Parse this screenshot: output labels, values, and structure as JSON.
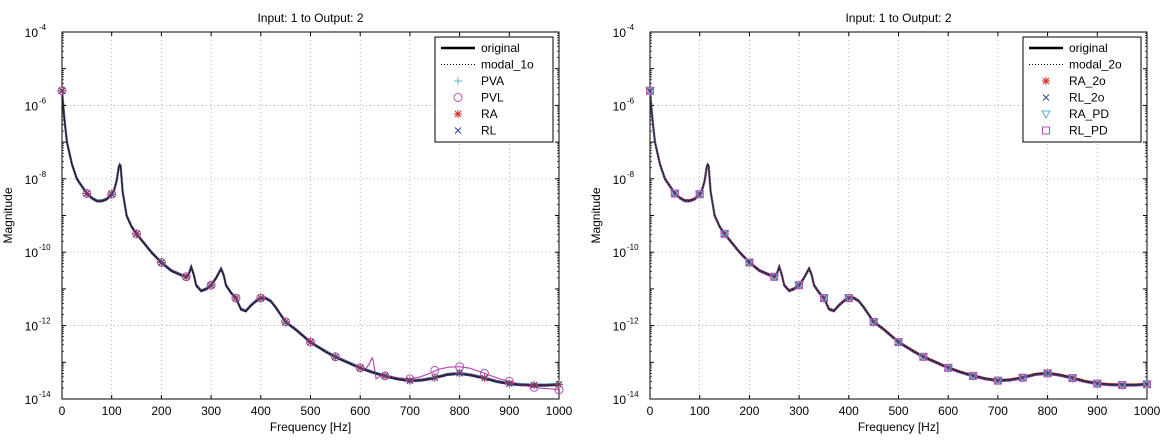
{
  "chart_data": [
    {
      "type": "line",
      "title": "Input: 1 to Output: 2",
      "xlabel": "Frequency [Hz]",
      "ylabel": "Magnitude",
      "xlim": [
        0,
        1000
      ],
      "ylim_log10": [
        -14,
        -4
      ],
      "yscale": "log",
      "grid": true,
      "legend_position": "top-right",
      "xticks": [
        "0",
        "100",
        "200",
        "300",
        "400",
        "500",
        "600",
        "700",
        "800",
        "900",
        "1000"
      ],
      "yticks": [
        {
          "base": "10",
          "exp": "-4"
        },
        {
          "base": "10",
          "exp": "-6"
        },
        {
          "base": "10",
          "exp": "-8"
        },
        {
          "base": "10",
          "exp": "-10"
        },
        {
          "base": "10",
          "exp": "-12"
        },
        {
          "base": "10",
          "exp": "-14"
        }
      ],
      "series": [
        {
          "name": "original",
          "style": "solid",
          "color": "#000000"
        },
        {
          "name": "modal_1o",
          "style": "dotted",
          "color": "#000000"
        },
        {
          "name": "PVA",
          "marker": "plus",
          "color": "#59b4d9"
        },
        {
          "name": "PVL",
          "marker": "circle",
          "color": "#b84fb3"
        },
        {
          "name": "RA",
          "marker": "asterisk",
          "color": "#d42b2b"
        },
        {
          "name": "RL",
          "marker": "x",
          "color": "#2c4b8f"
        }
      ],
      "magnitude_curve": {
        "x": [
          0,
          5,
          10,
          20,
          30,
          40,
          50,
          60,
          70,
          80,
          90,
          100,
          105,
          110,
          115,
          118,
          122,
          130,
          140,
          150,
          165,
          180,
          200,
          220,
          240,
          250,
          255,
          260,
          265,
          270,
          280,
          290,
          300,
          310,
          320,
          325,
          330,
          340,
          350,
          360,
          370,
          380,
          390,
          400,
          410,
          420,
          430,
          440,
          450,
          470,
          500,
          530,
          550,
          575,
          600,
          625,
          650,
          675,
          700,
          725,
          750,
          775,
          800,
          825,
          850,
          875,
          900,
          925,
          950,
          975,
          1000
        ],
        "log10y": [
          -5.6,
          -6.4,
          -7.0,
          -7.6,
          -8.0,
          -8.2,
          -8.4,
          -8.52,
          -8.6,
          -8.6,
          -8.55,
          -8.42,
          -8.3,
          -8.05,
          -7.6,
          -7.65,
          -8.35,
          -9.0,
          -9.3,
          -9.5,
          -9.75,
          -10.0,
          -10.28,
          -10.5,
          -10.62,
          -10.67,
          -10.6,
          -10.4,
          -10.6,
          -10.9,
          -11.05,
          -11.0,
          -10.9,
          -10.7,
          -10.45,
          -10.6,
          -10.9,
          -11.1,
          -11.25,
          -11.55,
          -11.6,
          -11.45,
          -11.33,
          -11.25,
          -11.25,
          -11.33,
          -11.5,
          -11.7,
          -11.9,
          -12.1,
          -12.45,
          -12.7,
          -12.85,
          -13.0,
          -13.15,
          -13.27,
          -13.37,
          -13.45,
          -13.5,
          -13.48,
          -13.42,
          -13.33,
          -13.3,
          -13.35,
          -13.43,
          -13.52,
          -13.58,
          -13.61,
          -13.62,
          -13.62,
          -13.6
        ]
      },
      "pvl_spike_curve": {
        "x": [
          590,
          600,
          610,
          618,
          625,
          632,
          640,
          650,
          660,
          680,
          700,
          720,
          740,
          760,
          780,
          800,
          820,
          840,
          860,
          880,
          900,
          920,
          940,
          960,
          980,
          1000
        ],
        "log10y": [
          -13.1,
          -13.15,
          -13.2,
          -13.05,
          -12.85,
          -13.45,
          -13.38,
          -13.37,
          -13.39,
          -13.43,
          -13.45,
          -13.4,
          -13.3,
          -13.18,
          -13.13,
          -13.12,
          -13.16,
          -13.25,
          -13.35,
          -13.45,
          -13.52,
          -13.6,
          -13.66,
          -13.7,
          -13.72,
          -13.75
        ]
      },
      "marker_samples": {
        "x": [
          0,
          50,
          100,
          150,
          200,
          250,
          300,
          350,
          400,
          450,
          500,
          550,
          600,
          650,
          700,
          750,
          800,
          850,
          900,
          950,
          1000
        ],
        "log10y": [
          -5.6,
          -8.4,
          -8.42,
          -9.5,
          -10.28,
          -10.67,
          -10.9,
          -11.25,
          -11.25,
          -11.9,
          -12.45,
          -12.85,
          -13.15,
          -13.37,
          -13.5,
          -13.42,
          -13.3,
          -13.43,
          -13.58,
          -13.62,
          -13.6
        ],
        "pvl_log10y": [
          -5.6,
          -8.4,
          -8.42,
          -9.5,
          -10.28,
          -10.67,
          -10.9,
          -11.25,
          -11.25,
          -11.9,
          -12.45,
          -12.85,
          -13.15,
          -13.37,
          -13.45,
          -13.22,
          -13.12,
          -13.3,
          -13.52,
          -13.68,
          -13.75
        ]
      }
    },
    {
      "type": "line",
      "title": "Input: 1 to Output: 2",
      "xlabel": "Frequency [Hz]",
      "ylabel": "Magnitude",
      "xlim": [
        0,
        1000
      ],
      "ylim_log10": [
        -14,
        -4
      ],
      "yscale": "log",
      "grid": true,
      "legend_position": "top-right",
      "xticks": [
        "0",
        "100",
        "200",
        "300",
        "400",
        "500",
        "600",
        "700",
        "800",
        "900",
        "1000"
      ],
      "yticks": [
        {
          "base": "10",
          "exp": "-4"
        },
        {
          "base": "10",
          "exp": "-6"
        },
        {
          "base": "10",
          "exp": "-8"
        },
        {
          "base": "10",
          "exp": "-10"
        },
        {
          "base": "10",
          "exp": "-12"
        },
        {
          "base": "10",
          "exp": "-14"
        }
      ],
      "series": [
        {
          "name": "original",
          "style": "solid",
          "color": "#000000"
        },
        {
          "name": "modal_2o",
          "style": "dotted",
          "color": "#000000"
        },
        {
          "name": "RA_2o",
          "marker": "asterisk",
          "color": "#d42b2b"
        },
        {
          "name": "RL_2o",
          "marker": "x",
          "color": "#2c4b8f"
        },
        {
          "name": "RA_PD",
          "marker": "triangle-down",
          "color": "#59b4d9"
        },
        {
          "name": "RL_PD",
          "marker": "square",
          "color": "#b84fb3"
        }
      ],
      "magnitude_curve": {
        "x": [
          0,
          5,
          10,
          20,
          30,
          40,
          50,
          60,
          70,
          80,
          90,
          100,
          105,
          110,
          115,
          118,
          122,
          130,
          140,
          150,
          165,
          180,
          200,
          220,
          240,
          250,
          255,
          260,
          265,
          270,
          280,
          290,
          300,
          310,
          320,
          325,
          330,
          340,
          350,
          360,
          370,
          380,
          390,
          400,
          410,
          420,
          430,
          440,
          450,
          470,
          500,
          530,
          550,
          575,
          600,
          625,
          650,
          675,
          700,
          725,
          750,
          775,
          800,
          825,
          850,
          875,
          900,
          925,
          950,
          975,
          1000
        ],
        "log10y": [
          -5.6,
          -6.4,
          -7.0,
          -7.6,
          -8.0,
          -8.2,
          -8.4,
          -8.52,
          -8.6,
          -8.6,
          -8.55,
          -8.42,
          -8.3,
          -8.05,
          -7.6,
          -7.65,
          -8.35,
          -9.0,
          -9.3,
          -9.5,
          -9.75,
          -10.0,
          -10.28,
          -10.5,
          -10.62,
          -10.67,
          -10.6,
          -10.4,
          -10.6,
          -10.9,
          -11.05,
          -11.0,
          -10.9,
          -10.7,
          -10.45,
          -10.6,
          -10.9,
          -11.1,
          -11.25,
          -11.55,
          -11.6,
          -11.45,
          -11.33,
          -11.25,
          -11.25,
          -11.33,
          -11.5,
          -11.7,
          -11.9,
          -12.1,
          -12.45,
          -12.7,
          -12.85,
          -13.0,
          -13.15,
          -13.27,
          -13.37,
          -13.45,
          -13.5,
          -13.48,
          -13.42,
          -13.33,
          -13.3,
          -13.35,
          -13.43,
          -13.52,
          -13.58,
          -13.61,
          -13.62,
          -13.62,
          -13.6
        ]
      },
      "marker_samples": {
        "x": [
          0,
          50,
          100,
          150,
          200,
          250,
          300,
          350,
          400,
          450,
          500,
          550,
          600,
          650,
          700,
          750,
          800,
          850,
          900,
          950,
          1000
        ],
        "log10y": [
          -5.6,
          -8.4,
          -8.42,
          -9.5,
          -10.28,
          -10.67,
          -10.9,
          -11.25,
          -11.25,
          -11.9,
          -12.45,
          -12.85,
          -13.15,
          -13.37,
          -13.5,
          -13.42,
          -13.3,
          -13.43,
          -13.58,
          -13.62,
          -13.6
        ]
      }
    }
  ]
}
